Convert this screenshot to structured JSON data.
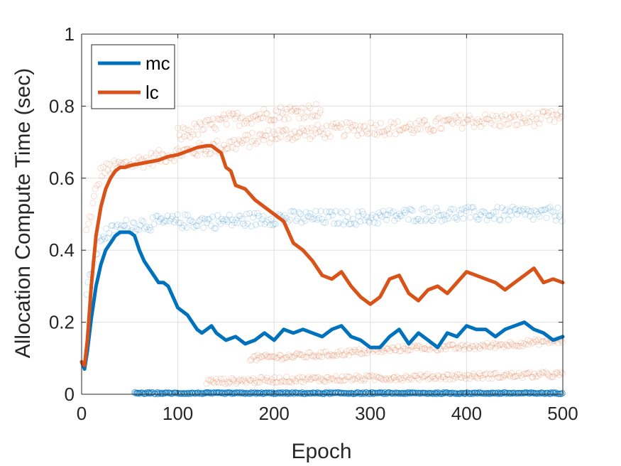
{
  "chart_data": {
    "type": "line",
    "title": "",
    "xlabel": "Epoch",
    "ylabel": "Allocation Compute Time (sec)",
    "xlim": [
      0,
      500
    ],
    "ylim": [
      0,
      1
    ],
    "xticks": [
      0,
      100,
      200,
      300,
      400,
      500
    ],
    "yticks": [
      0,
      0.2,
      0.4,
      0.6,
      0.8,
      1
    ],
    "xtick_labels": [
      "0",
      "100",
      "200",
      "300",
      "400",
      "500"
    ],
    "ytick_labels": [
      "0",
      "0.2",
      "0.4",
      "0.6",
      "0.8",
      "1"
    ],
    "grid": true,
    "legend_position": "top-left",
    "series": [
      {
        "name": "mc",
        "color": "#0072BD",
        "x": [
          0,
          3,
          6,
          10,
          15,
          20,
          25,
          30,
          35,
          40,
          45,
          50,
          55,
          60,
          65,
          70,
          75,
          80,
          85,
          90,
          95,
          100,
          105,
          110,
          115,
          120,
          125,
          130,
          135,
          140,
          145,
          150,
          160,
          170,
          180,
          190,
          200,
          210,
          220,
          230,
          240,
          250,
          260,
          270,
          280,
          290,
          300,
          310,
          320,
          330,
          340,
          350,
          360,
          370,
          380,
          390,
          400,
          410,
          420,
          430,
          440,
          450,
          460,
          470,
          480,
          490,
          500
        ],
        "y": [
          0.09,
          0.07,
          0.12,
          0.21,
          0.3,
          0.36,
          0.4,
          0.42,
          0.44,
          0.45,
          0.45,
          0.45,
          0.44,
          0.4,
          0.37,
          0.35,
          0.33,
          0.31,
          0.31,
          0.3,
          0.27,
          0.24,
          0.23,
          0.22,
          0.2,
          0.18,
          0.17,
          0.18,
          0.19,
          0.17,
          0.16,
          0.15,
          0.16,
          0.14,
          0.15,
          0.17,
          0.15,
          0.18,
          0.17,
          0.18,
          0.17,
          0.16,
          0.18,
          0.19,
          0.16,
          0.15,
          0.13,
          0.13,
          0.16,
          0.18,
          0.14,
          0.17,
          0.15,
          0.13,
          0.17,
          0.16,
          0.19,
          0.18,
          0.18,
          0.16,
          0.18,
          0.19,
          0.2,
          0.18,
          0.17,
          0.15,
          0.16
        ]
      },
      {
        "name": "lc",
        "color": "#D95319",
        "x": [
          0,
          3,
          6,
          10,
          15,
          20,
          25,
          30,
          35,
          40,
          45,
          50,
          60,
          70,
          80,
          90,
          100,
          110,
          120,
          130,
          135,
          140,
          145,
          150,
          155,
          160,
          170,
          180,
          190,
          200,
          210,
          220,
          230,
          240,
          250,
          260,
          270,
          280,
          290,
          300,
          310,
          320,
          330,
          340,
          350,
          360,
          370,
          380,
          390,
          400,
          410,
          420,
          430,
          440,
          450,
          460,
          470,
          480,
          490,
          500
        ],
        "y": [
          0.09,
          0.08,
          0.15,
          0.3,
          0.44,
          0.52,
          0.57,
          0.6,
          0.62,
          0.63,
          0.63,
          0.635,
          0.64,
          0.645,
          0.65,
          0.66,
          0.665,
          0.675,
          0.685,
          0.69,
          0.69,
          0.68,
          0.67,
          0.63,
          0.62,
          0.58,
          0.57,
          0.54,
          0.52,
          0.5,
          0.48,
          0.42,
          0.4,
          0.37,
          0.33,
          0.32,
          0.34,
          0.3,
          0.27,
          0.25,
          0.27,
          0.32,
          0.33,
          0.28,
          0.26,
          0.29,
          0.3,
          0.28,
          0.31,
          0.34,
          0.33,
          0.32,
          0.31,
          0.29,
          0.31,
          0.33,
          0.35,
          0.31,
          0.32,
          0.31
        ]
      }
    ],
    "scatter_bands": [
      {
        "series": "lc",
        "x": [
          5,
          20,
          50,
          100,
          150,
          200,
          250,
          300,
          350,
          400,
          450,
          500
        ],
        "y": [
          0.45,
          0.62,
          0.64,
          0.67,
          0.69,
          0.72,
          0.73,
          0.74,
          0.74,
          0.76,
          0.76,
          0.77
        ]
      },
      {
        "series": "lc",
        "x": [
          100,
          150,
          200,
          250
        ],
        "y": [
          0.72,
          0.76,
          0.78,
          0.79
        ]
      },
      {
        "series": "mc",
        "x": [
          5,
          20,
          50,
          100,
          150,
          200,
          250,
          300,
          350,
          400,
          450,
          500
        ],
        "y": [
          0.28,
          0.44,
          0.47,
          0.48,
          0.48,
          0.49,
          0.49,
          0.49,
          0.5,
          0.5,
          0.5,
          0.5
        ]
      },
      {
        "series": "lc",
        "x": [
          175,
          250,
          300,
          350,
          400,
          450,
          500
        ],
        "y": [
          0.1,
          0.11,
          0.12,
          0.13,
          0.13,
          0.14,
          0.15
        ]
      },
      {
        "series": "lc",
        "x": [
          130,
          200,
          300,
          400,
          500
        ],
        "y": [
          0.035,
          0.04,
          0.045,
          0.05,
          0.055
        ]
      },
      {
        "series": "mc",
        "x": [
          55,
          150,
          250,
          350,
          450,
          500
        ],
        "y": [
          0.003,
          0.003,
          0.003,
          0.003,
          0.003,
          0.003
        ]
      }
    ]
  }
}
